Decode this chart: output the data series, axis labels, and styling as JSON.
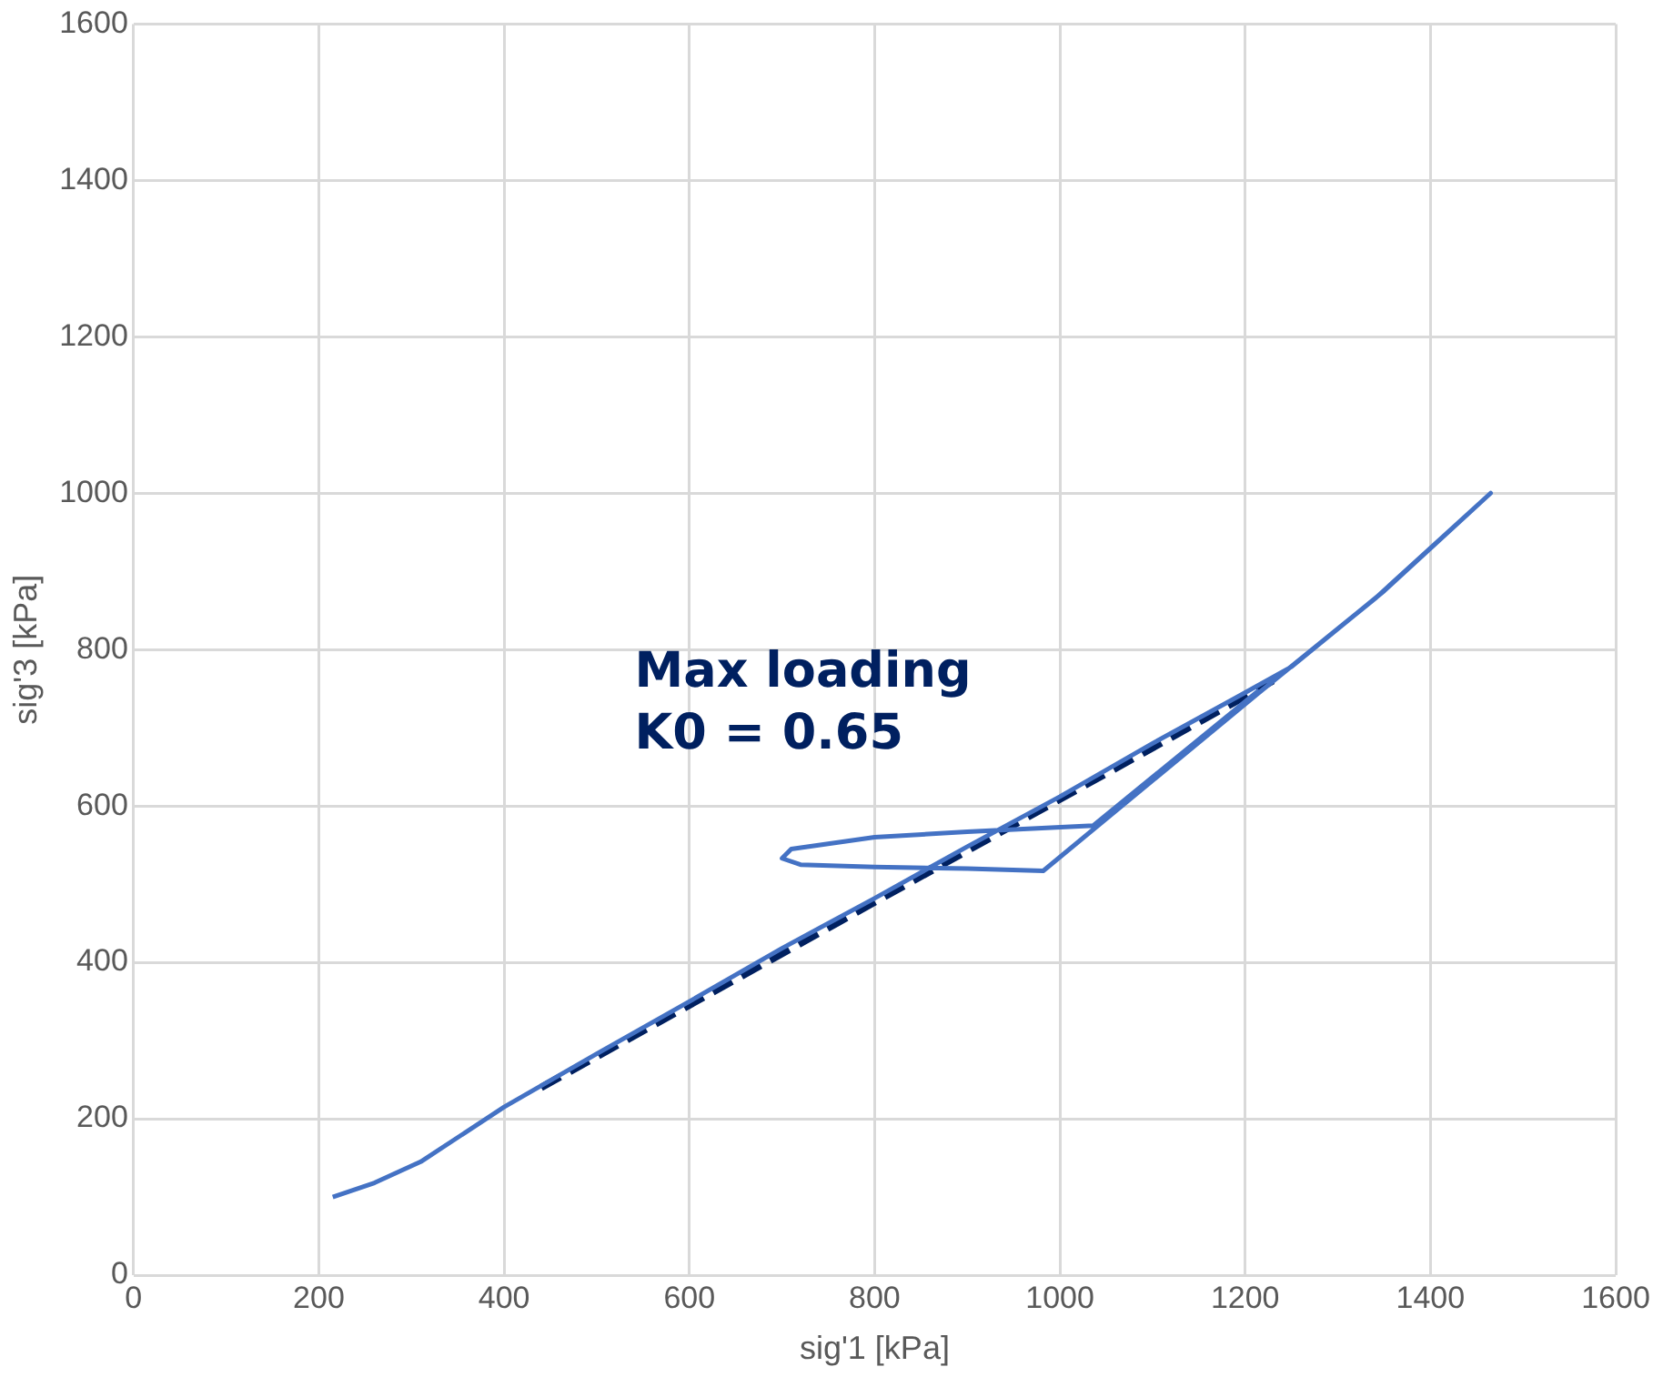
{
  "chart_data": {
    "type": "line",
    "xlabel": "sig'1 [kPa]",
    "ylabel": "sig'3 [kPa]",
    "xlim": [
      0,
      1600
    ],
    "xticks": [
      0,
      200,
      400,
      600,
      800,
      1000,
      1200,
      1400,
      1600
    ],
    "ylim": [
      0,
      1600
    ],
    "yticks": [
      0,
      200,
      400,
      600,
      800,
      1000,
      1200,
      1400,
      1600
    ],
    "grid": true,
    "legend": false,
    "marker": "none",
    "series": [
      {
        "color": "#4472c4",
        "line_style": "solid",
        "x": [
          215,
          260,
          310,
          400,
          500,
          600,
          700,
          800,
          900,
          1000,
          1100,
          1200,
          1250,
          1350,
          1465,
          1340,
          1215,
          982,
          900,
          800,
          720,
          700,
          710,
          800,
          900,
          1036,
          1215
        ],
        "values": [
          100,
          118,
          145,
          215,
          283,
          350,
          418,
          482,
          548,
          612,
          680,
          745,
          778,
          875,
          1000,
          865,
          745,
          517,
          520,
          522,
          525,
          533,
          545,
          560,
          567,
          575,
          748
        ]
      },
      {
        "color": "#002060",
        "line_style": "dashed",
        "x": [
          440,
          1230
        ],
        "values": [
          240,
          760
        ]
      }
    ],
    "annotations": [
      "Max loading\nK0 = 0.65"
    ]
  }
}
